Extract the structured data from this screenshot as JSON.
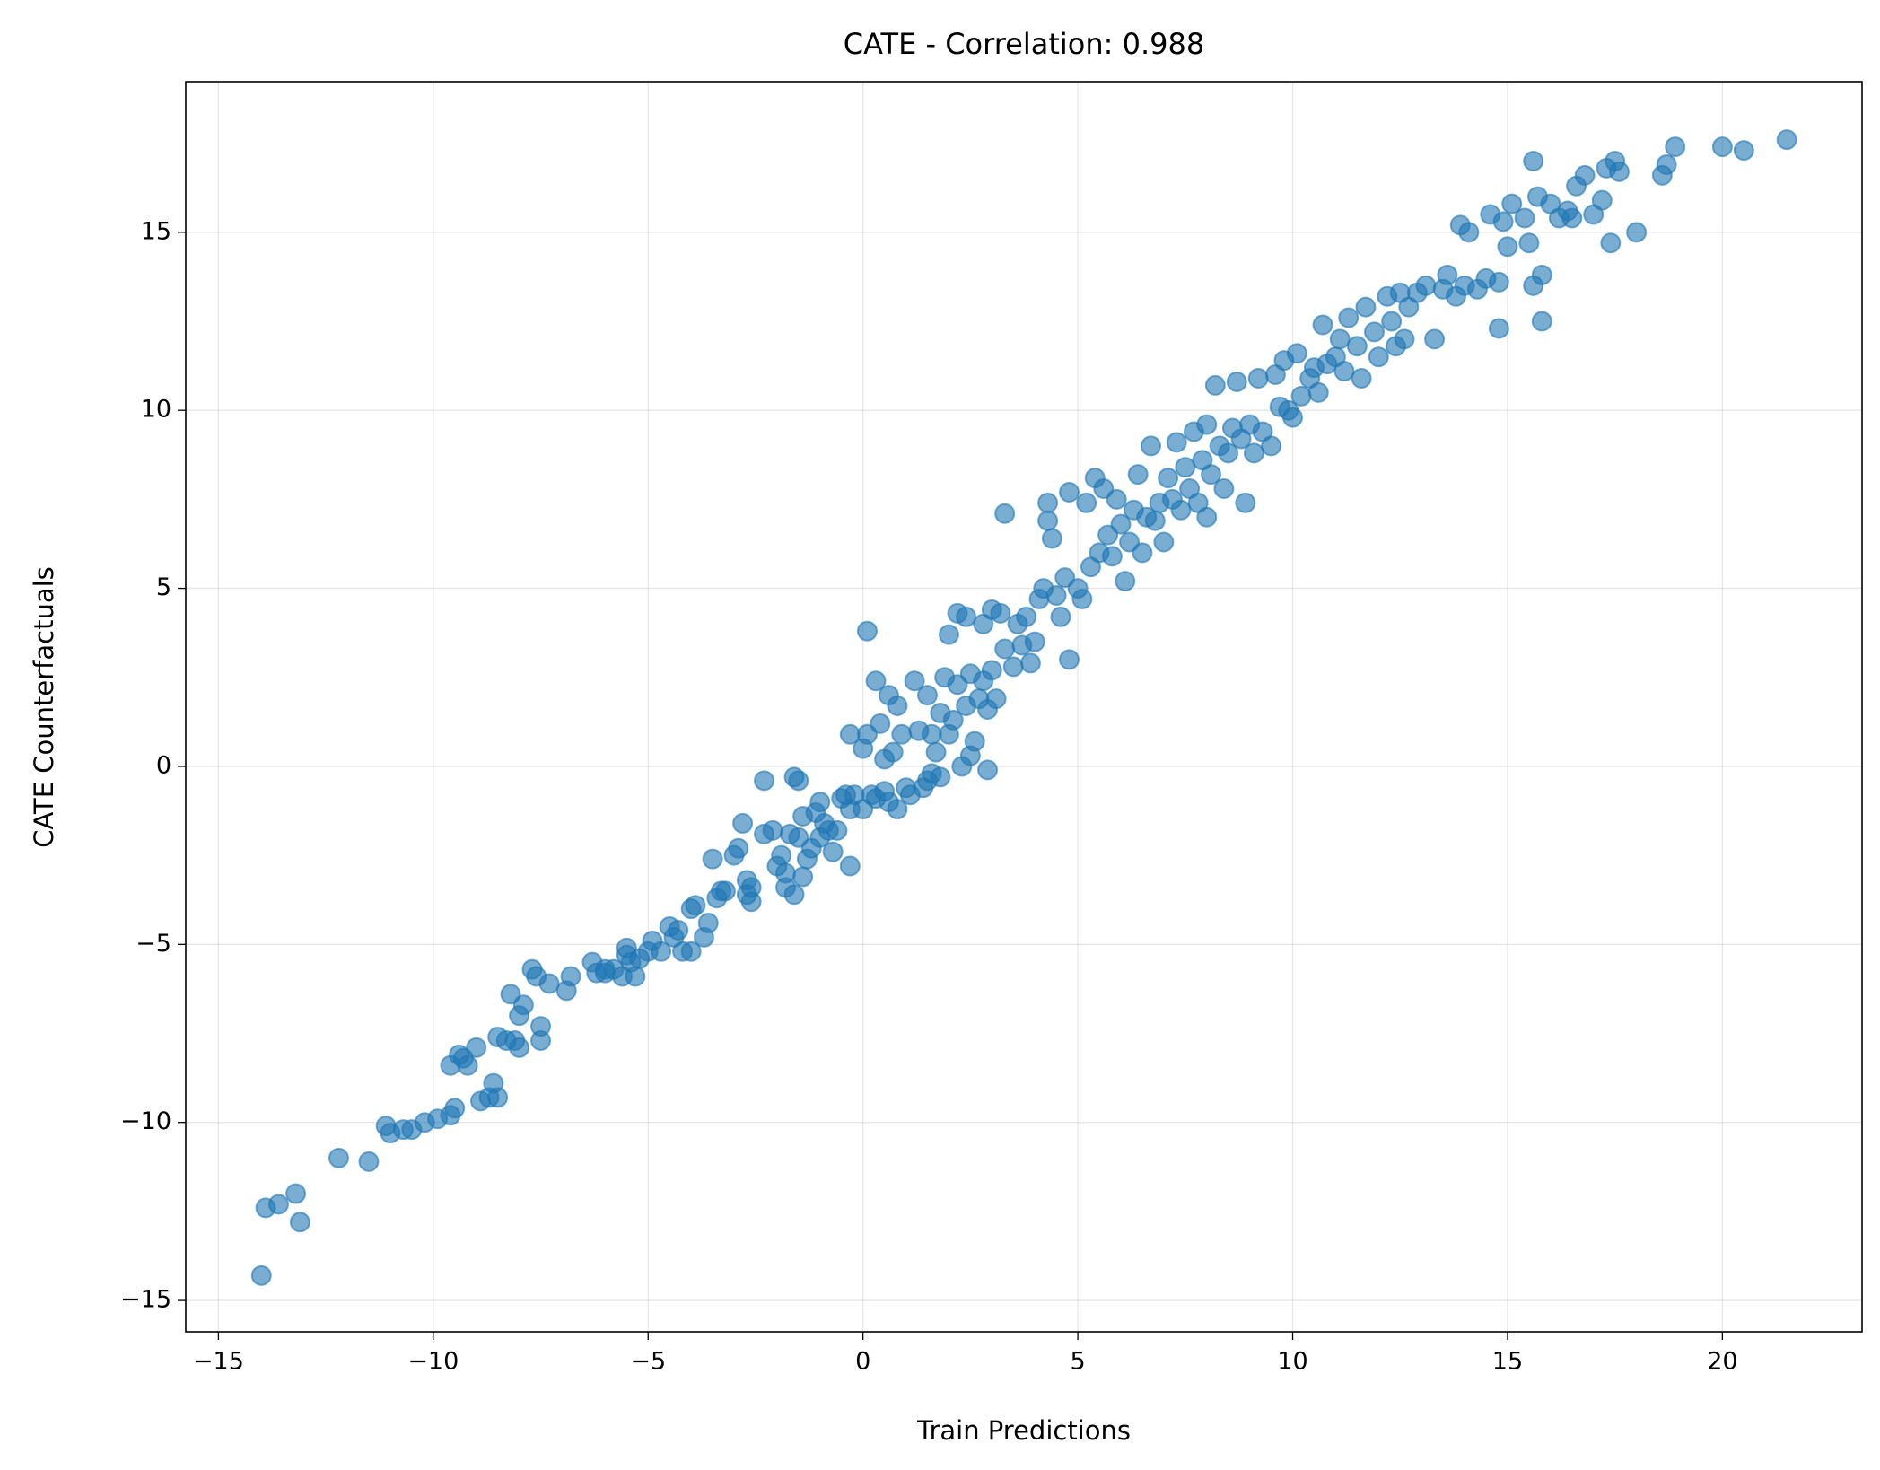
{
  "chart_data": {
    "type": "scatter",
    "title": "CATE - Correlation: 0.988",
    "x_label": "Train Predictions",
    "y_label": "CATE Counterfactuals",
    "color": "#1f77b4",
    "grid": true,
    "xlim": [
      -15.76,
      23.25
    ],
    "ylim": [
      -15.88,
      19.23
    ],
    "xticks": [
      {
        "value": -15,
        "label": "−15"
      },
      {
        "value": -10,
        "label": "−10"
      },
      {
        "value": -5,
        "label": "−5"
      },
      0,
      5,
      10,
      15,
      20
    ],
    "yticks": [
      {
        "value": -15,
        "label": "−15"
      },
      {
        "value": -10,
        "label": "−10"
      },
      {
        "value": -5,
        "label": "−5"
      },
      0,
      5,
      10,
      15
    ],
    "x": [
      -14,
      -13.9,
      -13.6,
      -13.2,
      -13.1,
      -12.2,
      -11.5,
      -11.1,
      -11.0,
      -10.7,
      -10.5,
      -10.2,
      -9.9,
      -9.6,
      -9.5,
      -9.6,
      -9.4,
      -9.3,
      -9.2,
      -9.0,
      -8.9,
      -8.7,
      -8.6,
      -8.5,
      -8.5,
      -8.3,
      -8.2,
      -8.1,
      -8.0,
      -8.0,
      -7.9,
      -7.7,
      -7.6,
      -7.5,
      -7.5,
      -7.3,
      -6.9,
      -6.8,
      -6.3,
      -6.2,
      -6.0,
      -6.0,
      -5.8,
      -5.6,
      -5.5,
      -5.5,
      -5.4,
      -5.3,
      -5.2,
      -5.0,
      -4.9,
      -4.7,
      -4.5,
      -4.4,
      -4.3,
      -4.2,
      -4.0,
      -4.0,
      -3.9,
      -3.7,
      -3.6,
      -3.5,
      -3.4,
      -3.3,
      -3.2,
      -3.0,
      -2.9,
      -2.8,
      -2.7,
      -2.7,
      -2.6,
      -2.6,
      -2.3,
      -2.3,
      -2.1,
      -2.0,
      -1.9,
      -1.8,
      -1.8,
      -1.7,
      -1.6,
      -1.6,
      -1.5,
      -1.5,
      -1.4,
      -1.4,
      -1.3,
      -1.2,
      -1.1,
      -1.0,
      -1.0,
      -0.9,
      -0.8,
      -0.7,
      -0.6,
      -0.5,
      -0.4,
      -0.3,
      -0.3,
      -0.2,
      -0.3,
      0.0,
      0.0,
      0.1,
      0.1,
      0.2,
      0.3,
      0.3,
      0.4,
      0.5,
      0.5,
      0.6,
      0.6,
      0.7,
      0.8,
      0.8,
      0.9,
      1.0,
      1.1,
      1.2,
      1.3,
      1.4,
      1.5,
      1.5,
      1.6,
      1.6,
      1.7,
      1.8,
      1.8,
      1.9,
      2.0,
      2.0,
      2.1,
      2.2,
      2.2,
      2.3,
      2.4,
      2.4,
      2.5,
      2.5,
      2.6,
      2.7,
      2.8,
      2.8,
      2.9,
      2.9,
      3.0,
      3.0,
      3.1,
      3.2,
      3.3,
      3.3,
      3.5,
      3.6,
      3.7,
      3.8,
      3.9,
      4.0,
      4.1,
      4.2,
      4.3,
      4.3,
      4.4,
      4.5,
      4.6,
      4.7,
      4.8,
      4.8,
      5.0,
      5.1,
      5.2,
      5.3,
      5.4,
      5.5,
      5.6,
      5.7,
      5.8,
      5.9,
      6.0,
      6.1,
      6.2,
      6.3,
      6.4,
      6.5,
      6.6,
      6.7,
      6.8,
      6.9,
      7.0,
      7.1,
      7.2,
      7.3,
      7.4,
      7.5,
      7.6,
      7.7,
      7.8,
      7.9,
      8.0,
      8.0,
      8.1,
      8.2,
      8.3,
      8.4,
      8.5,
      8.6,
      8.7,
      8.8,
      8.9,
      9.0,
      9.1,
      9.2,
      9.3,
      9.5,
      9.6,
      9.7,
      9.8,
      9.9,
      10.0,
      10.1,
      10.2,
      10.4,
      10.5,
      10.6,
      10.7,
      10.8,
      11.0,
      11.1,
      11.2,
      11.3,
      11.5,
      11.6,
      11.7,
      11.9,
      12.0,
      12.2,
      12.3,
      12.4,
      12.5,
      12.6,
      12.7,
      12.9,
      13.1,
      13.3,
      13.5,
      13.6,
      13.8,
      13.9,
      14.0,
      14.1,
      14.3,
      14.5,
      14.6,
      14.8,
      14.8,
      14.9,
      15.0,
      15.1,
      15.4,
      15.5,
      15.6,
      15.6,
      15.7,
      15.8,
      15.8,
      16.0,
      16.2,
      16.4,
      16.5,
      16.6,
      16.8,
      17.0,
      17.2,
      17.3,
      17.4,
      17.5,
      17.6,
      18.0,
      18.6,
      18.7,
      18.9,
      20.0,
      20.5,
      21.5
    ],
    "values": [
      -14.3,
      -12.4,
      -12.3,
      -12.0,
      -12.8,
      -11.0,
      -11.1,
      -10.1,
      -10.3,
      -10.2,
      -10.2,
      -10.0,
      -9.9,
      -9.8,
      -9.6,
      -8.4,
      -8.1,
      -8.2,
      -8.4,
      -7.9,
      -9.4,
      -9.3,
      -8.9,
      -9.3,
      -7.6,
      -7.7,
      -6.4,
      -7.7,
      -7.9,
      -7.0,
      -6.7,
      -5.7,
      -5.9,
      -7.3,
      -7.7,
      -6.1,
      -6.3,
      -5.9,
      -5.5,
      -5.8,
      -5.7,
      -5.8,
      -5.7,
      -5.9,
      -5.3,
      -5.1,
      -5.5,
      -5.9,
      -5.4,
      -5.2,
      -4.9,
      -5.2,
      -4.5,
      -4.8,
      -4.6,
      -5.2,
      -5.2,
      -4.0,
      -3.9,
      -4.8,
      -4.4,
      -2.6,
      -3.7,
      -3.5,
      -3.5,
      -2.5,
      -2.3,
      -1.6,
      -3.2,
      -3.6,
      -3.8,
      -3.4,
      -0.4,
      -1.9,
      -1.8,
      -2.8,
      -2.5,
      -3.0,
      -3.4,
      -1.9,
      -3.6,
      -0.3,
      -0.4,
      -2.0,
      -1.4,
      -3.1,
      -2.6,
      -2.3,
      -1.3,
      -1.0,
      -2.0,
      -1.6,
      -1.8,
      -2.4,
      -1.8,
      -0.9,
      -0.8,
      -2.8,
      -1.2,
      -0.8,
      0.9,
      -1.2,
      0.5,
      0.9,
      3.8,
      -0.8,
      -0.9,
      2.4,
      1.2,
      0.2,
      -0.7,
      2.0,
      -1.0,
      0.4,
      1.7,
      -1.2,
      0.9,
      -0.6,
      -0.8,
      2.4,
      1.0,
      -0.6,
      -0.4,
      2.0,
      0.9,
      -0.2,
      0.4,
      -0.3,
      1.5,
      2.5,
      3.7,
      0.9,
      1.3,
      4.3,
      2.3,
      0.0,
      4.2,
      1.7,
      0.3,
      2.6,
      0.7,
      1.9,
      2.4,
      4.0,
      -0.1,
      1.6,
      4.4,
      2.7,
      1.9,
      4.3,
      3.3,
      7.1,
      2.8,
      4.0,
      3.4,
      4.2,
      2.9,
      3.5,
      4.7,
      5.0,
      7.4,
      6.9,
      6.4,
      4.8,
      4.2,
      5.3,
      3.0,
      7.7,
      5.0,
      4.7,
      7.4,
      5.6,
      8.1,
      6.0,
      7.8,
      6.5,
      5.9,
      7.5,
      6.8,
      5.2,
      6.3,
      7.2,
      8.2,
      6.0,
      7.0,
      9.0,
      6.9,
      7.4,
      6.3,
      8.1,
      7.5,
      9.1,
      7.2,
      8.4,
      7.8,
      9.4,
      7.4,
      8.6,
      7.0,
      9.6,
      8.2,
      10.7,
      9.0,
      7.8,
      8.8,
      9.5,
      10.8,
      9.2,
      7.4,
      9.6,
      8.8,
      10.9,
      9.4,
      9.0,
      11.0,
      10.1,
      11.4,
      10.0,
      9.8,
      11.6,
      10.4,
      10.9,
      11.2,
      10.5,
      12.4,
      11.3,
      11.5,
      12.0,
      11.1,
      12.6,
      11.8,
      10.9,
      12.9,
      12.2,
      11.5,
      13.2,
      12.5,
      11.8,
      13.3,
      12.0,
      12.9,
      13.3,
      13.5,
      12.0,
      13.4,
      13.8,
      13.2,
      15.2,
      13.5,
      15.0,
      13.4,
      13.7,
      15.5,
      13.6,
      12.3,
      15.3,
      14.6,
      15.8,
      15.4,
      14.7,
      17.0,
      13.5,
      16.0,
      13.8,
      12.5,
      15.8,
      15.4,
      15.6,
      15.4,
      16.3,
      16.6,
      15.5,
      15.9,
      16.8,
      14.7,
      17.0,
      16.7,
      15.0,
      16.6,
      16.9,
      17.4,
      17.4,
      17.3,
      17.6
    ]
  }
}
